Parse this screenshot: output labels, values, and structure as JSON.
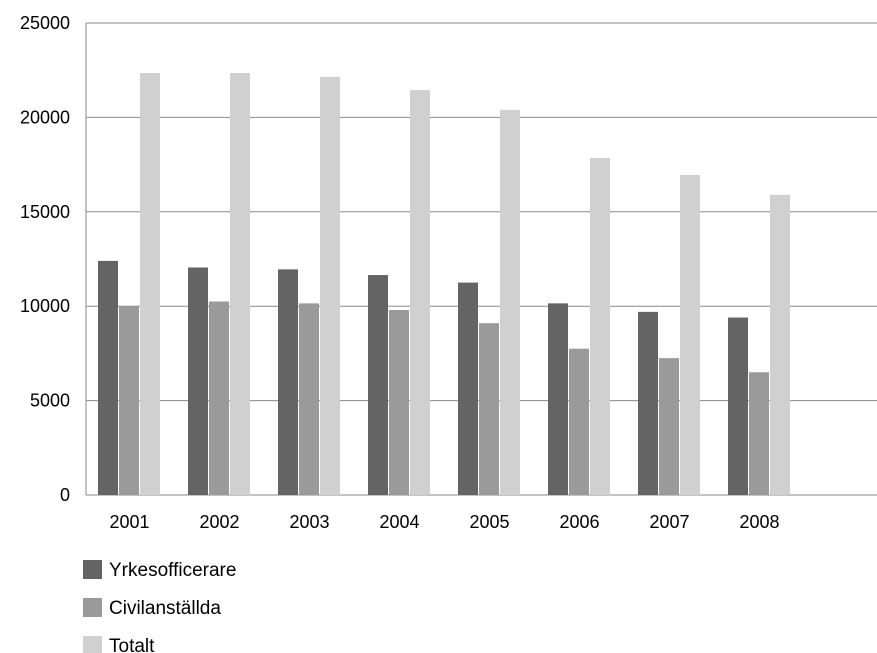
{
  "chart_data": {
    "type": "bar",
    "categories": [
      "2001",
      "2002",
      "2003",
      "2004",
      "2005",
      "2006",
      "2007",
      "2008"
    ],
    "series": [
      {
        "name": "Yrkesofficerare",
        "color": "#646464",
        "values": [
          12400,
          12050,
          11950,
          11650,
          11250,
          10150,
          9700,
          9400
        ]
      },
      {
        "name": "Civilanställda",
        "color": "#9a9a9a",
        "values": [
          10000,
          10250,
          10150,
          9800,
          9100,
          7750,
          7250,
          6500
        ]
      },
      {
        "name": "Totalt",
        "color": "#d0d0d0",
        "values": [
          22350,
          22350,
          22150,
          21450,
          20400,
          17850,
          16950,
          15900
        ]
      }
    ],
    "y_ticks": [
      "0",
      "5000",
      "10000",
      "15000",
      "20000",
      "25000"
    ],
    "ylim": [
      0,
      25000
    ],
    "grid": true,
    "legend_position": "bottom-left",
    "title": "",
    "xlabel": "",
    "ylabel": ""
  }
}
